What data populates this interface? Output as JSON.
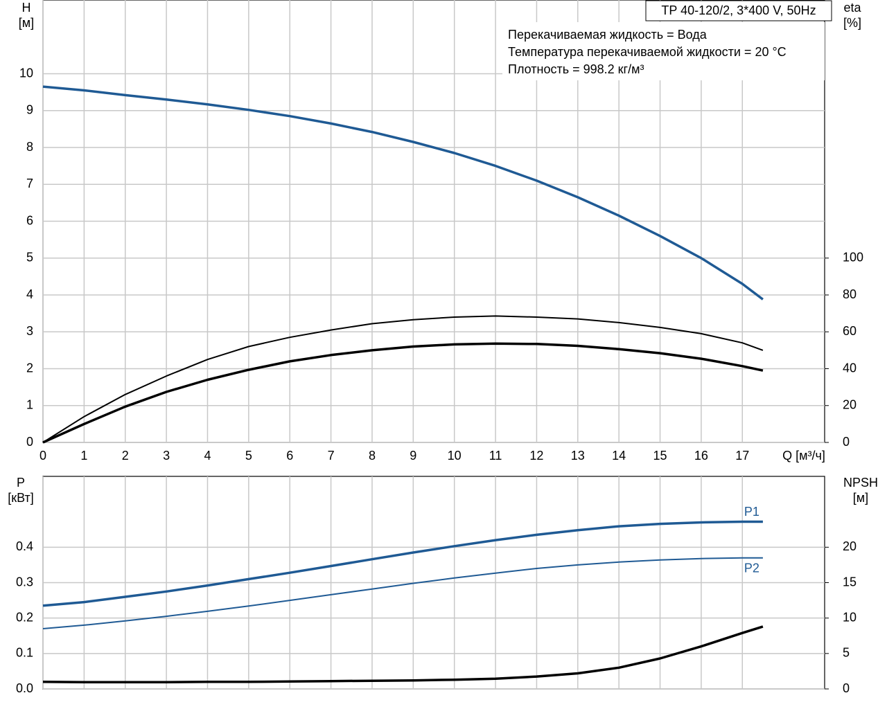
{
  "chart_data": [
    {
      "type": "line",
      "title": "TP 40-120/2, 3*400 V, 50Hz",
      "notes": [
        "Перекачиваемая жидкость = Вода",
        "Температура перекачиваемой жидкости = 20 °C",
        "Плотность = 998.2 кг/м³"
      ],
      "ylabel": [
        "H",
        "[м]"
      ],
      "y2label": [
        "eta",
        "[%]"
      ],
      "xlabel": "Q [м³/ч]",
      "x": [
        0,
        1,
        2,
        3,
        4,
        5,
        6,
        7,
        8,
        9,
        10,
        11,
        12,
        13,
        14,
        15,
        16,
        17,
        17.5
      ],
      "xlim": [
        0,
        19
      ],
      "xticks": [
        0,
        1,
        2,
        3,
        4,
        5,
        6,
        7,
        8,
        9,
        10,
        11,
        12,
        13,
        14,
        15,
        16,
        17
      ],
      "ylim": [
        0,
        12
      ],
      "yticks": [
        0,
        1,
        2,
        3,
        4,
        5,
        6,
        7,
        8,
        9,
        10
      ],
      "y2lim": [
        0,
        240
      ],
      "y2ticks": [
        0,
        20,
        40,
        60,
        80,
        100
      ],
      "grid": true,
      "series": [
        {
          "color": "#1f5a94",
          "line_width": 3.5,
          "values": [
            9.65,
            9.55,
            9.42,
            9.3,
            9.17,
            9.02,
            8.85,
            8.65,
            8.42,
            8.15,
            7.85,
            7.5,
            7.1,
            6.65,
            6.15,
            5.6,
            5.0,
            4.3,
            3.88
          ]
        },
        {
          "color": "#000000",
          "line_width": 2,
          "axis": "y2",
          "values": [
            0,
            14,
            26,
            36,
            45,
            52,
            57,
            61,
            64.4,
            66.6,
            68,
            68.6,
            68,
            67,
            65,
            62.4,
            59,
            54,
            50
          ]
        },
        {
          "color": "#000000",
          "line_width": 3.5,
          "axis": "y2",
          "values": [
            0,
            10,
            19.4,
            27.4,
            34,
            39.4,
            44,
            47.4,
            50,
            52,
            53.2,
            53.6,
            53.4,
            52.4,
            50.6,
            48.4,
            45.4,
            41.4,
            39
          ]
        }
      ]
    },
    {
      "type": "line",
      "ylabel": [
        "P",
        "[кВт]"
      ],
      "y2label": [
        "NPSH",
        "[м]"
      ],
      "x": [
        0,
        1,
        2,
        3,
        4,
        5,
        6,
        7,
        8,
        9,
        10,
        11,
        12,
        13,
        14,
        15,
        16,
        17,
        17.5
      ],
      "xlim": [
        0,
        19
      ],
      "ylim": [
        0,
        0.6
      ],
      "yticks": [
        {
          "value": 0,
          "label": "0.0"
        },
        0.1,
        0.2,
        0.3,
        0.4
      ],
      "y2lim": [
        0,
        30
      ],
      "y2ticks": [
        0,
        5,
        10,
        15,
        20
      ],
      "grid": true,
      "series": [
        {
          "name": "P1",
          "color": "#1f5a94",
          "line_width": 3.5,
          "values": [
            0.235,
            0.245,
            0.26,
            0.275,
            0.292,
            0.31,
            0.328,
            0.347,
            0.366,
            0.385,
            0.403,
            0.42,
            0.435,
            0.448,
            0.459,
            0.466,
            0.47,
            0.472,
            0.472
          ]
        },
        {
          "name": "P2",
          "color": "#1f5a94",
          "line_width": 2,
          "values": [
            0.17,
            0.18,
            0.192,
            0.205,
            0.219,
            0.234,
            0.25,
            0.266,
            0.282,
            0.298,
            0.313,
            0.327,
            0.34,
            0.35,
            0.358,
            0.364,
            0.368,
            0.37,
            0.37
          ]
        },
        {
          "color": "#000000",
          "line_width": 3.5,
          "axis": "y2",
          "values": [
            1.0,
            0.95,
            0.95,
            0.95,
            1.0,
            1.0,
            1.05,
            1.1,
            1.15,
            1.2,
            1.3,
            1.45,
            1.75,
            2.2,
            3.0,
            4.3,
            6.0,
            7.9,
            8.8
          ]
        }
      ]
    }
  ]
}
